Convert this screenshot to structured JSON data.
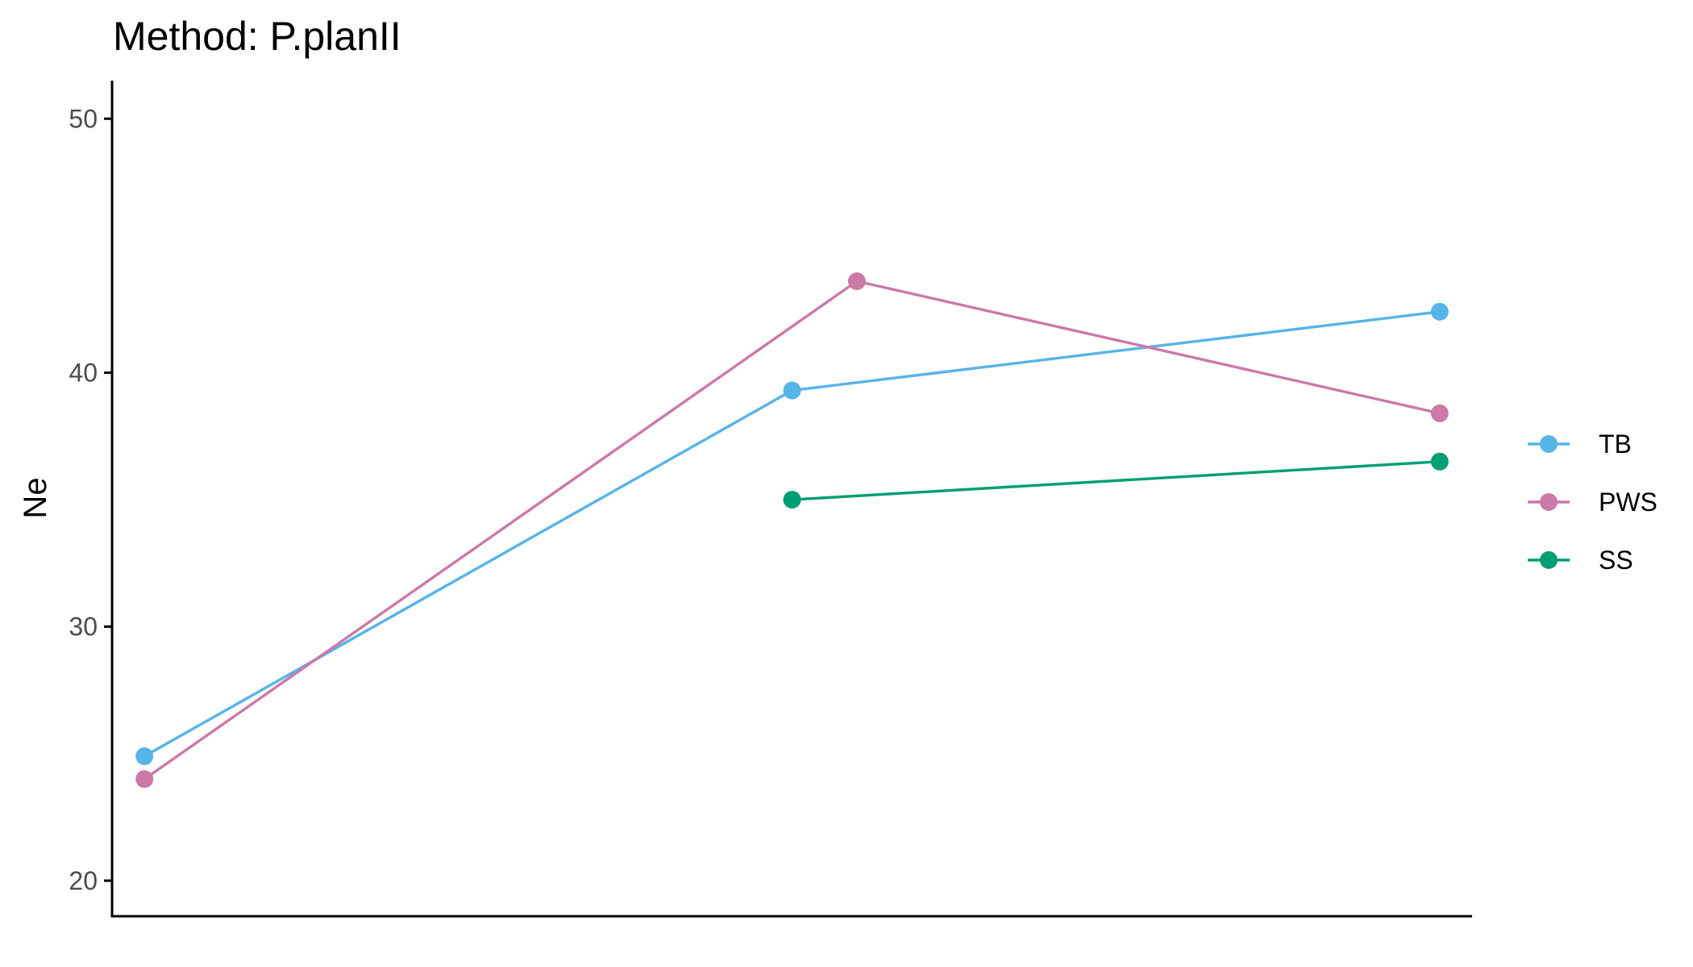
{
  "chart_data": {
    "type": "line",
    "title": "Method: P.planII",
    "xlabel": "",
    "ylabel": "Ne",
    "x": [
      1,
      2,
      3
    ],
    "xlim": [
      0.95,
      3.05
    ],
    "ylim": [
      18.6,
      51.5
    ],
    "yticks": [
      20,
      30,
      40,
      50
    ],
    "grid": false,
    "legend_position": "right",
    "series": [
      {
        "name": "TB",
        "color": "#56B4E9",
        "points": [
          [
            1,
            24.9
          ],
          [
            2,
            39.3
          ],
          [
            3,
            42.4
          ]
        ]
      },
      {
        "name": "PWS",
        "color": "#CC79A7",
        "points": [
          [
            1,
            24.0
          ],
          [
            2.1,
            43.6
          ],
          [
            3,
            38.4
          ]
        ]
      },
      {
        "name": "SS",
        "color": "#009E73",
        "points": [
          [
            2,
            35.0
          ],
          [
            3,
            36.5
          ]
        ]
      }
    ]
  }
}
